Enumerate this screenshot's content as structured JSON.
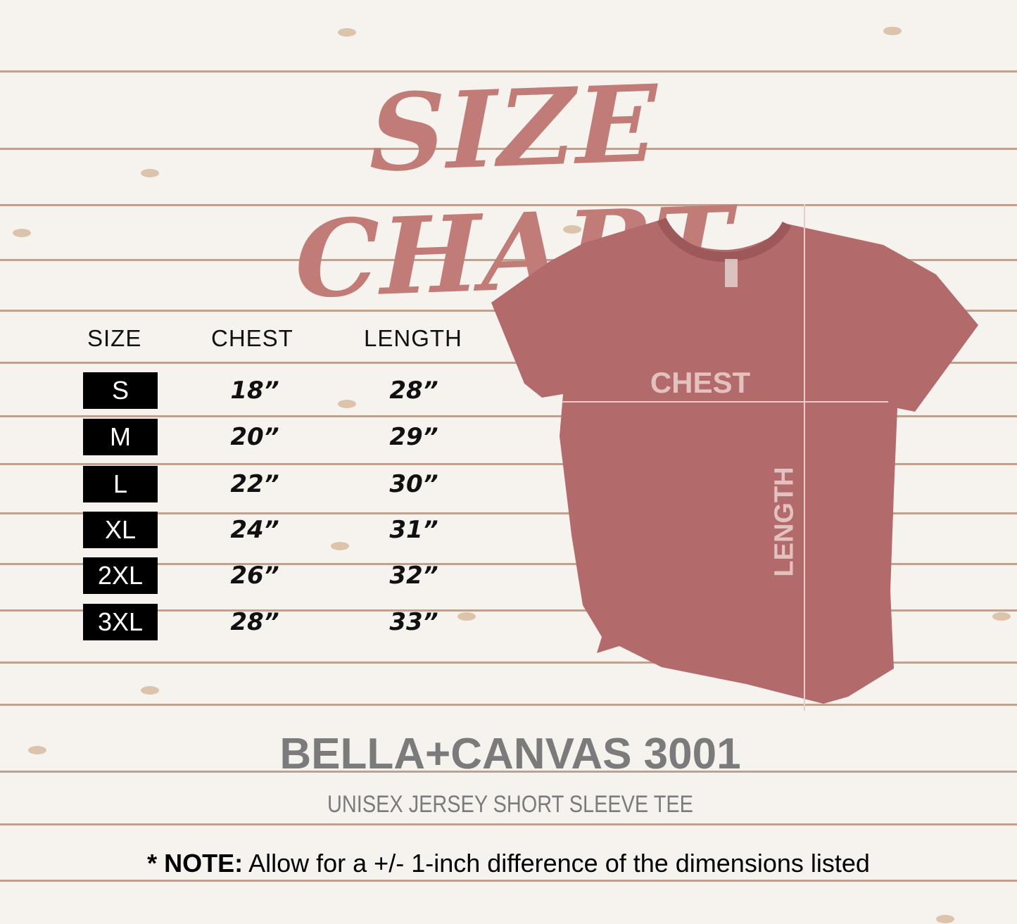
{
  "title": "SIZE CHART",
  "table": {
    "headers": [
      "SIZE",
      "CHEST",
      "LENGTH"
    ],
    "rows": [
      {
        "size": "S",
        "chest": "18”",
        "length": "28”"
      },
      {
        "size": "M",
        "chest": "20”",
        "length": "29”"
      },
      {
        "size": "L",
        "chest": "22”",
        "length": "30”"
      },
      {
        "size": "XL",
        "chest": "24”",
        "length": "31”"
      },
      {
        "size": "2XL",
        "chest": "26”",
        "length": "32”"
      },
      {
        "size": "3XL",
        "chest": "28”",
        "length": "33”"
      }
    ]
  },
  "diagram": {
    "chest_label": "CHEST",
    "length_label": "LENGTH",
    "shirt_color": "#b36a6b",
    "title_color": "#c17c78"
  },
  "product": {
    "name": "BELLA+CANVAS 3001",
    "description": "UNISEX JERSEY SHORT SLEEVE TEE"
  },
  "note": {
    "prefix": "* NOTE:",
    "text": " Allow for a +/- 1-inch difference of the dimensions listed"
  }
}
